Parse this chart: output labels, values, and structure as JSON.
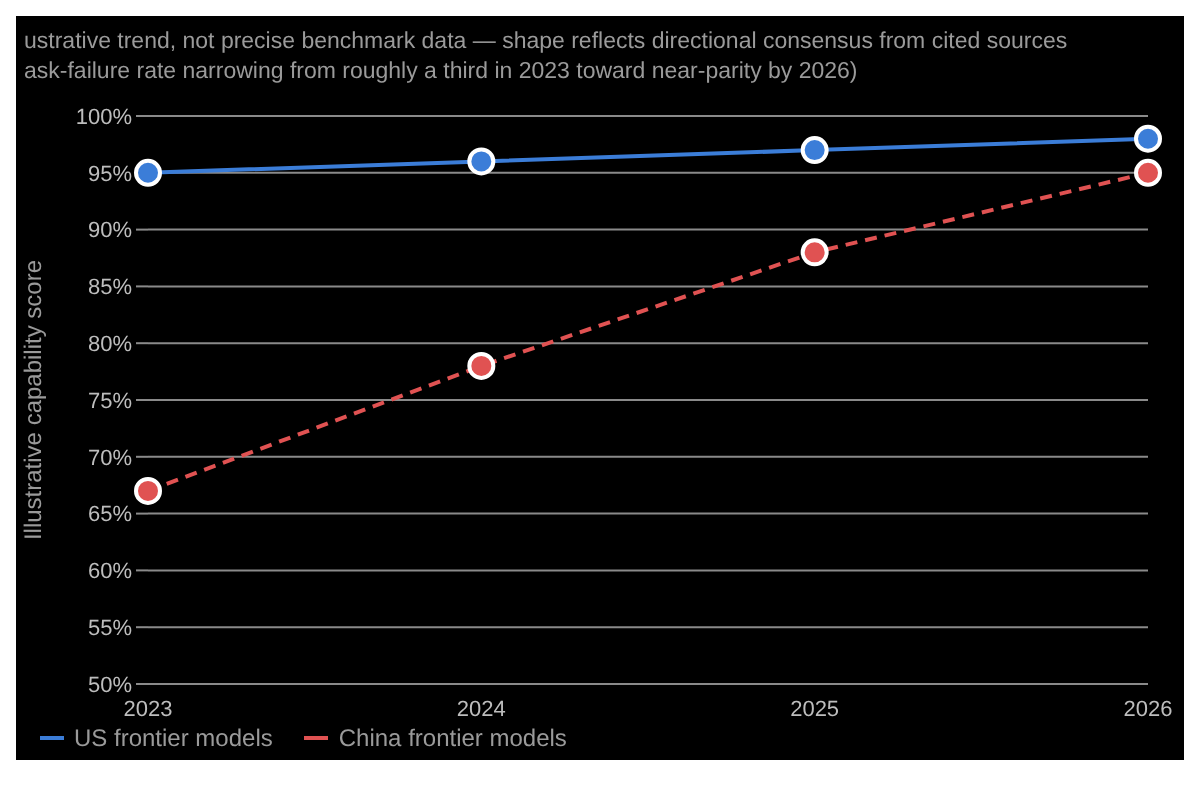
{
  "chart_data": {
    "type": "line",
    "title": "ustrative trend, not precise benchmark data — shape reflects directional consensus from cited sources",
    "subtitle": "ask-failure rate narrowing from roughly a third in 2023 toward near-parity by 2026)",
    "ylabel": "Illustrative capability score",
    "categories": [
      "2023",
      "2024",
      "2025",
      "2026"
    ],
    "series": [
      {
        "name": "US frontier models",
        "color": "#3b7dd8",
        "values": [
          95,
          96,
          97,
          98
        ],
        "line_style": "solid"
      },
      {
        "name": "China frontier models",
        "color": "#e05252",
        "values": [
          67,
          78,
          88,
          95
        ],
        "line_style": "dashed"
      }
    ],
    "ylim": [
      50,
      100
    ],
    "yticks": [
      {
        "value": 50,
        "label": "50%"
      },
      {
        "value": 55,
        "label": "55%"
      },
      {
        "value": 60,
        "label": "60%"
      },
      {
        "value": 65,
        "label": "65%"
      },
      {
        "value": 70,
        "label": "70%"
      },
      {
        "value": 75,
        "label": "75%"
      },
      {
        "value": 80,
        "label": "80%"
      },
      {
        "value": 85,
        "label": "85%"
      },
      {
        "value": 90,
        "label": "90%"
      },
      {
        "value": 95,
        "label": "95%"
      },
      {
        "value": 100,
        "label": "100%"
      }
    ],
    "grid": "y",
    "legend": "bottom left",
    "marker": "circle"
  }
}
